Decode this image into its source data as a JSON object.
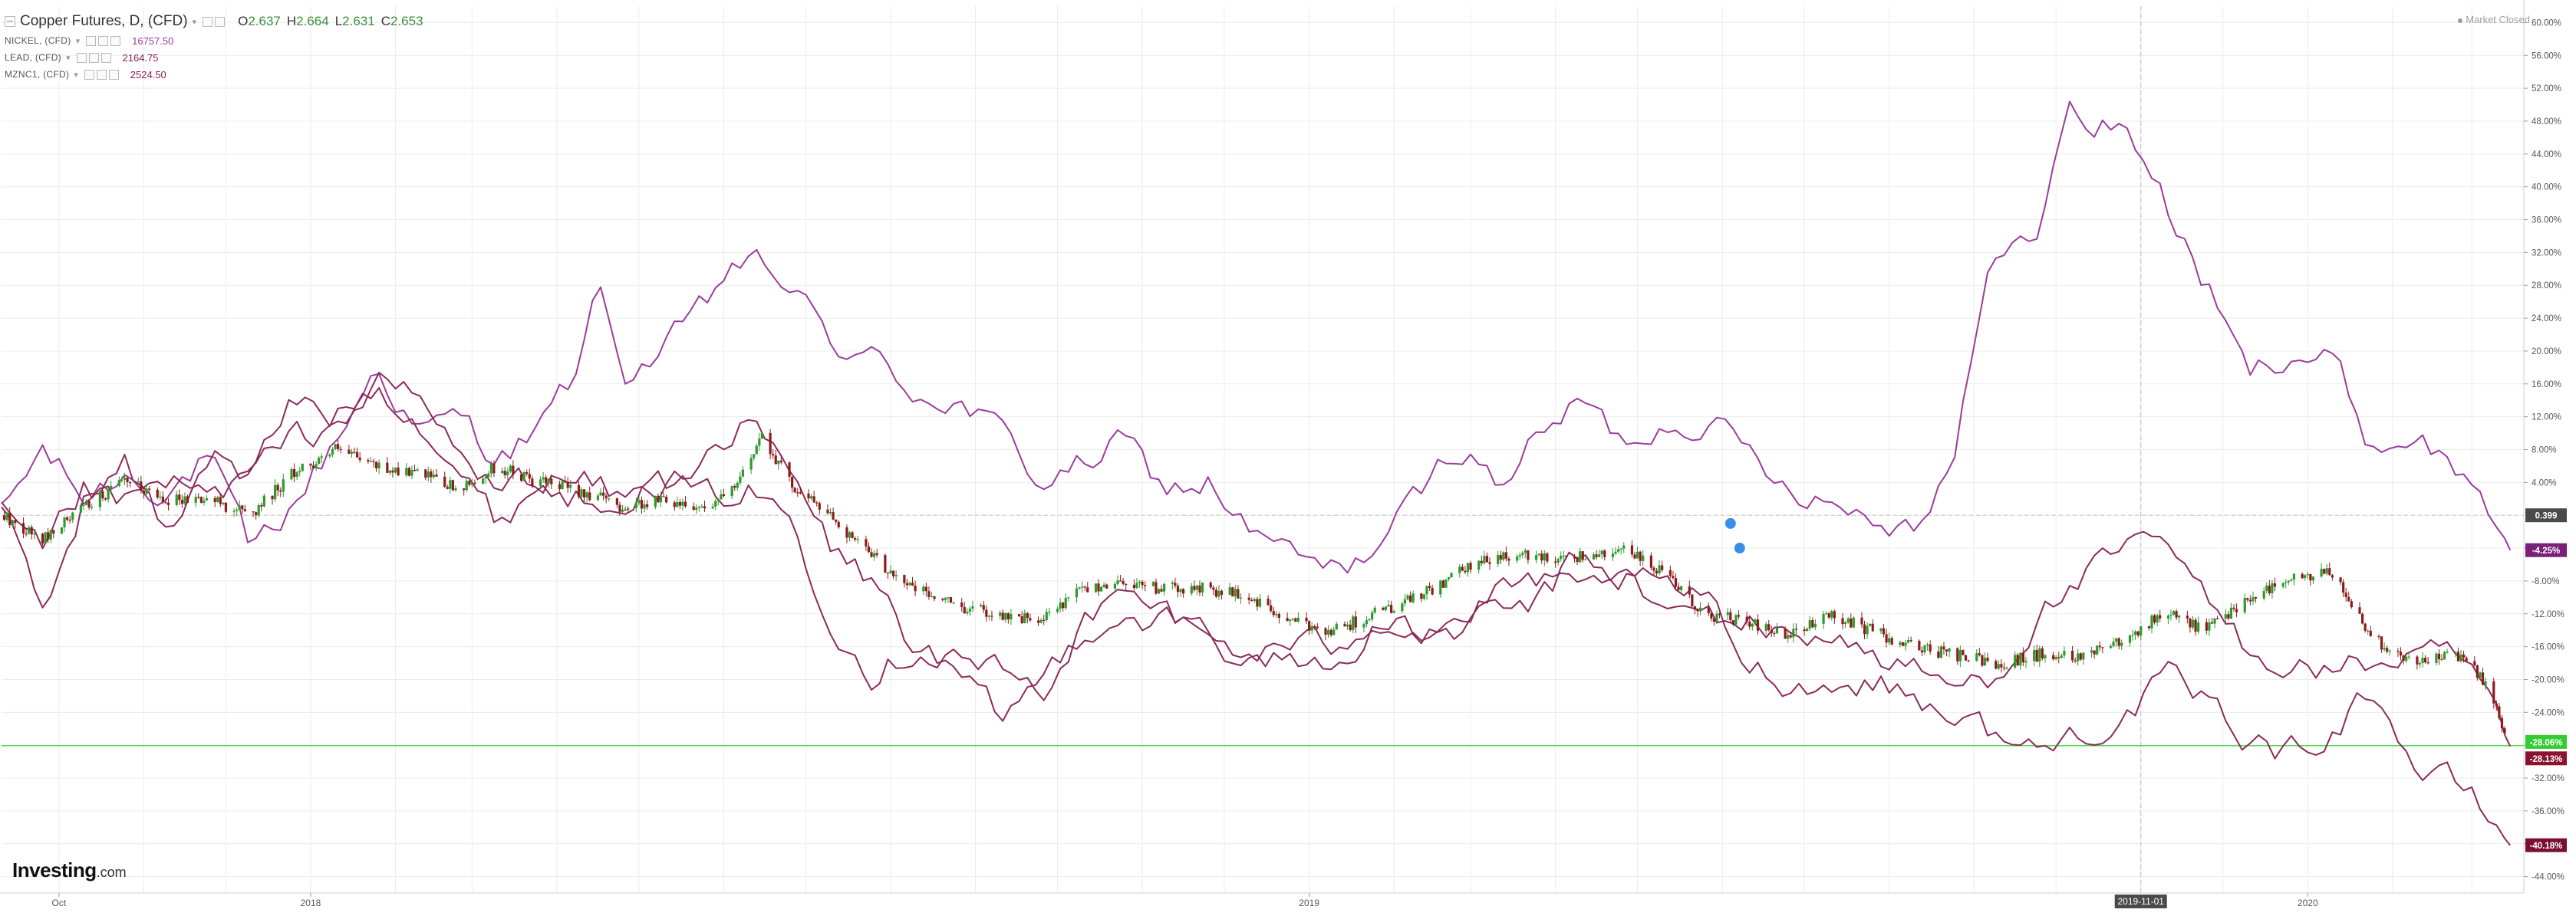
{
  "legend": {
    "main": {
      "title": "Copper Futures, D, (CFD)",
      "open_label": "O",
      "open": "2.637",
      "high_label": "H",
      "high": "2.664",
      "low_label": "L",
      "low": "2.631",
      "close_label": "C",
      "close": "2.653"
    },
    "compare": [
      {
        "name": "NICKEL, (CFD)",
        "value": "16757.50",
        "color": "#9c3b9c"
      },
      {
        "name": "LEAD, (CFD)",
        "value": "2164.75",
        "color": "#8b1e55"
      },
      {
        "name": "MZNC1, (CFD)",
        "value": "2524.50",
        "color": "#8b1e55"
      }
    ]
  },
  "status": {
    "market": "Market Closed"
  },
  "logo": {
    "brand": "Investing",
    "domain": ".com"
  },
  "colors": {
    "nickel": "#9c3b9c",
    "lead": "#8b2a5a",
    "zinc": "#8b2a5a",
    "up": "#2e9a2e",
    "down": "#8b1c1c",
    "grid": "#ececec",
    "hline": "#53d653"
  },
  "chart_data": {
    "type": "line",
    "x_tick_labels": [
      "Oct",
      "2018",
      "2019",
      "2019-11-01",
      "2020"
    ],
    "y_ticks": [
      "60.00%",
      "56.00%",
      "52.00%",
      "48.00%",
      "44.00%",
      "40.00%",
      "36.00%",
      "32.00%",
      "28.00%",
      "24.00%",
      "20.00%",
      "16.00%",
      "12.00%",
      "8.00%",
      "4.00%",
      "-4.00%",
      "-8.00%",
      "-12.00%",
      "-16.00%",
      "-20.00%",
      "-24.00%",
      "-28.00%",
      "-32.00%",
      "-36.00%",
      "-40.00%",
      "-44.00%"
    ],
    "ylim": [
      -46,
      62
    ],
    "y_unit": "%",
    "x_range": [
      "2017-09-10",
      "2020-03-20"
    ],
    "series": [
      {
        "name": "NICKEL, (CFD)",
        "style": "line",
        "last_label": "-4.25%",
        "points": [
          [
            "2017-09-10",
            0
          ],
          [
            "2017-09-25",
            8
          ],
          [
            "2017-10-10",
            2
          ],
          [
            "2017-10-25",
            5
          ],
          [
            "2017-11-10",
            3
          ],
          [
            "2017-11-25",
            7
          ],
          [
            "2017-12-10",
            -5
          ],
          [
            "2017-12-25",
            1
          ],
          [
            "2018-01-10",
            9
          ],
          [
            "2018-01-25",
            18
          ],
          [
            "2018-02-10",
            10
          ],
          [
            "2018-02-25",
            12
          ],
          [
            "2018-03-10",
            7
          ],
          [
            "2018-03-25",
            10
          ],
          [
            "2018-04-10",
            18
          ],
          [
            "2018-04-15",
            29
          ],
          [
            "2018-04-25",
            17
          ],
          [
            "2018-05-10",
            20
          ],
          [
            "2018-05-25",
            25
          ],
          [
            "2018-06-05",
            31
          ],
          [
            "2018-06-15",
            30
          ],
          [
            "2018-06-25",
            28
          ],
          [
            "2018-07-10",
            21
          ],
          [
            "2018-07-25",
            19
          ],
          [
            "2018-08-10",
            15
          ],
          [
            "2018-08-25",
            14
          ],
          [
            "2018-09-10",
            10
          ],
          [
            "2018-09-25",
            4
          ],
          [
            "2018-10-10",
            6
          ],
          [
            "2018-10-25",
            9
          ],
          [
            "2018-11-10",
            3
          ],
          [
            "2018-11-25",
            4
          ],
          [
            "2018-12-10",
            -2
          ],
          [
            "2018-12-25",
            -5
          ],
          [
            "2019-01-10",
            -7
          ],
          [
            "2019-01-25",
            -4
          ],
          [
            "2019-02-10",
            2
          ],
          [
            "2019-02-25",
            9
          ],
          [
            "2019-03-10",
            4
          ],
          [
            "2019-03-25",
            9
          ],
          [
            "2019-04-10",
            14
          ],
          [
            "2019-04-25",
            9
          ],
          [
            "2019-05-10",
            11
          ],
          [
            "2019-05-25",
            12
          ],
          [
            "2019-06-10",
            8
          ],
          [
            "2019-06-25",
            4
          ],
          [
            "2019-07-10",
            2
          ],
          [
            "2019-07-25",
            0
          ],
          [
            "2019-08-10",
            -1
          ],
          [
            "2019-08-25",
            8
          ],
          [
            "2019-09-05",
            27
          ],
          [
            "2019-09-15",
            35
          ],
          [
            "2019-09-25",
            33
          ],
          [
            "2019-10-05",
            50
          ],
          [
            "2019-10-15",
            47
          ],
          [
            "2019-10-25",
            48
          ],
          [
            "2019-11-05",
            42
          ],
          [
            "2019-11-15",
            34
          ],
          [
            "2019-11-25",
            28
          ],
          [
            "2019-12-10",
            17
          ],
          [
            "2019-12-25",
            20
          ],
          [
            "2020-01-10",
            19
          ],
          [
            "2020-01-25",
            8
          ],
          [
            "2020-02-10",
            10
          ],
          [
            "2020-02-25",
            5
          ],
          [
            "2020-03-05",
            3
          ],
          [
            "2020-03-15",
            -4.25
          ]
        ]
      },
      {
        "name": "LEAD, (CFD)",
        "style": "line",
        "last_label": "-28.13%",
        "points": [
          [
            "2017-09-10",
            0
          ],
          [
            "2017-09-25",
            -12
          ],
          [
            "2017-10-10",
            2
          ],
          [
            "2017-10-25",
            6
          ],
          [
            "2017-11-10",
            -2
          ],
          [
            "2017-11-25",
            8
          ],
          [
            "2017-12-10",
            4
          ],
          [
            "2017-12-25",
            14
          ],
          [
            "2018-01-10",
            12
          ],
          [
            "2018-01-25",
            16
          ],
          [
            "2018-02-10",
            12
          ],
          [
            "2018-02-25",
            5
          ],
          [
            "2018-03-10",
            -1
          ],
          [
            "2018-03-25",
            4
          ],
          [
            "2018-04-10",
            2
          ],
          [
            "2018-04-25",
            3
          ],
          [
            "2018-05-10",
            4
          ],
          [
            "2018-05-25",
            2
          ],
          [
            "2018-06-10",
            3
          ],
          [
            "2018-06-25",
            0
          ],
          [
            "2018-07-10",
            -12
          ],
          [
            "2018-07-25",
            -19
          ],
          [
            "2018-08-10",
            -16
          ],
          [
            "2018-08-25",
            -17
          ],
          [
            "2018-09-10",
            -19
          ],
          [
            "2018-09-25",
            -22
          ],
          [
            "2018-10-10",
            -13
          ],
          [
            "2018-10-25",
            -10
          ],
          [
            "2018-11-10",
            -12
          ],
          [
            "2018-11-25",
            -14
          ],
          [
            "2018-12-10",
            -18
          ],
          [
            "2018-12-25",
            -17
          ],
          [
            "2019-01-10",
            -19
          ],
          [
            "2019-01-25",
            -13
          ],
          [
            "2019-02-10",
            -15
          ],
          [
            "2019-02-25",
            -14
          ],
          [
            "2019-03-10",
            -12
          ],
          [
            "2019-03-25",
            -11
          ],
          [
            "2019-04-10",
            -5
          ],
          [
            "2019-04-25",
            -7
          ],
          [
            "2019-05-10",
            -12
          ],
          [
            "2019-05-25",
            -12
          ],
          [
            "2019-06-10",
            -13
          ],
          [
            "2019-06-25",
            -15
          ],
          [
            "2019-07-10",
            -14
          ],
          [
            "2019-07-25",
            -17
          ],
          [
            "2019-08-10",
            -19
          ],
          [
            "2019-08-25",
            -21
          ],
          [
            "2019-09-10",
            -19
          ],
          [
            "2019-09-25",
            -12
          ],
          [
            "2019-10-10",
            -8
          ],
          [
            "2019-10-25",
            -5
          ],
          [
            "2019-11-10",
            -3
          ],
          [
            "2019-11-25",
            -11
          ],
          [
            "2019-12-10",
            -16
          ],
          [
            "2019-12-25",
            -18
          ],
          [
            "2020-01-10",
            -19
          ],
          [
            "2020-01-25",
            -18
          ],
          [
            "2020-02-10",
            -17
          ],
          [
            "2020-02-25",
            -18
          ],
          [
            "2020-03-05",
            -21
          ],
          [
            "2020-03-15",
            -28.13
          ]
        ]
      },
      {
        "name": "MZNC1, (CFD)",
        "style": "line",
        "last_label": "-40.18%",
        "points": [
          [
            "2017-09-10",
            0
          ],
          [
            "2017-09-25",
            -5
          ],
          [
            "2017-10-10",
            3
          ],
          [
            "2017-10-25",
            1
          ],
          [
            "2017-11-10",
            4
          ],
          [
            "2017-11-25",
            2
          ],
          [
            "2017-12-10",
            5
          ],
          [
            "2017-12-25",
            9
          ],
          [
            "2018-01-10",
            11
          ],
          [
            "2018-01-25",
            16
          ],
          [
            "2018-02-10",
            14
          ],
          [
            "2018-02-25",
            7
          ],
          [
            "2018-03-10",
            3
          ],
          [
            "2018-03-25",
            5
          ],
          [
            "2018-04-10",
            4
          ],
          [
            "2018-04-25",
            2
          ],
          [
            "2018-05-10",
            3
          ],
          [
            "2018-05-25",
            8
          ],
          [
            "2018-06-10",
            11
          ],
          [
            "2018-06-25",
            5
          ],
          [
            "2018-07-10",
            -4
          ],
          [
            "2018-07-25",
            -8
          ],
          [
            "2018-08-10",
            -16
          ],
          [
            "2018-08-25",
            -20
          ],
          [
            "2018-09-10",
            -25
          ],
          [
            "2018-09-25",
            -20
          ],
          [
            "2018-10-10",
            -14
          ],
          [
            "2018-10-25",
            -12
          ],
          [
            "2018-11-10",
            -13
          ],
          [
            "2018-11-25",
            -15
          ],
          [
            "2018-12-10",
            -17
          ],
          [
            "2018-12-25",
            -16
          ],
          [
            "2019-01-10",
            -16
          ],
          [
            "2019-01-25",
            -12
          ],
          [
            "2019-02-10",
            -14
          ],
          [
            "2019-02-25",
            -13
          ],
          [
            "2019-03-10",
            -10
          ],
          [
            "2019-03-25",
            -8
          ],
          [
            "2019-04-10",
            -10
          ],
          [
            "2019-04-25",
            -8
          ],
          [
            "2019-05-10",
            -9
          ],
          [
            "2019-05-25",
            -10
          ],
          [
            "2019-06-10",
            -18
          ],
          [
            "2019-06-25",
            -20
          ],
          [
            "2019-07-10",
            -21
          ],
          [
            "2019-07-25",
            -20
          ],
          [
            "2019-08-10",
            -22
          ],
          [
            "2019-08-25",
            -24
          ],
          [
            "2019-09-10",
            -27
          ],
          [
            "2019-09-25",
            -29
          ],
          [
            "2019-10-10",
            -26
          ],
          [
            "2019-10-25",
            -25
          ],
          [
            "2019-11-10",
            -20
          ],
          [
            "2019-11-25",
            -23
          ],
          [
            "2019-12-10",
            -27
          ],
          [
            "2019-12-25",
            -29
          ],
          [
            "2020-01-10",
            -26
          ],
          [
            "2020-01-25",
            -21
          ],
          [
            "2020-02-10",
            -31
          ],
          [
            "2020-02-25",
            -33
          ],
          [
            "2020-03-05",
            -36
          ],
          [
            "2020-03-15",
            -40.18
          ]
        ]
      },
      {
        "name": "Copper Futures, D, (CFD)",
        "style": "candles",
        "last_label": "-28.06%",
        "points": [
          [
            "2017-09-10",
            0
          ],
          [
            "2017-09-25",
            -3
          ],
          [
            "2017-10-10",
            1
          ],
          [
            "2017-10-25",
            4
          ],
          [
            "2017-11-10",
            2
          ],
          [
            "2017-11-25",
            2
          ],
          [
            "2017-12-10",
            0
          ],
          [
            "2017-12-25",
            5
          ],
          [
            "2018-01-10",
            8
          ],
          [
            "2018-01-25",
            6
          ],
          [
            "2018-02-10",
            5
          ],
          [
            "2018-02-25",
            3
          ],
          [
            "2018-03-10",
            6
          ],
          [
            "2018-03-25",
            4
          ],
          [
            "2018-04-10",
            3
          ],
          [
            "2018-04-25",
            1
          ],
          [
            "2018-05-10",
            2
          ],
          [
            "2018-05-25",
            1
          ],
          [
            "2018-06-05",
            3
          ],
          [
            "2018-06-15",
            10
          ],
          [
            "2018-06-25",
            4
          ],
          [
            "2018-07-10",
            0
          ],
          [
            "2018-07-25",
            -5
          ],
          [
            "2018-08-10",
            -9
          ],
          [
            "2018-08-25",
            -11
          ],
          [
            "2018-09-10",
            -12
          ],
          [
            "2018-09-25",
            -13
          ],
          [
            "2018-10-10",
            -9
          ],
          [
            "2018-10-25",
            -8
          ],
          [
            "2018-11-10",
            -9
          ],
          [
            "2018-11-25",
            -9
          ],
          [
            "2018-12-10",
            -10
          ],
          [
            "2018-12-25",
            -13
          ],
          [
            "2019-01-10",
            -14
          ],
          [
            "2019-01-25",
            -12
          ],
          [
            "2019-02-10",
            -10
          ],
          [
            "2019-02-25",
            -7
          ],
          [
            "2019-03-10",
            -5
          ],
          [
            "2019-03-25",
            -5
          ],
          [
            "2019-04-10",
            -5
          ],
          [
            "2019-04-25",
            -4
          ],
          [
            "2019-05-10",
            -7
          ],
          [
            "2019-05-25",
            -12
          ],
          [
            "2019-06-10",
            -13
          ],
          [
            "2019-06-25",
            -15
          ],
          [
            "2019-07-10",
            -12
          ],
          [
            "2019-07-25",
            -14
          ],
          [
            "2019-08-10",
            -16
          ],
          [
            "2019-08-25",
            -17
          ],
          [
            "2019-09-10",
            -18
          ],
          [
            "2019-09-25",
            -17
          ],
          [
            "2019-10-10",
            -17
          ],
          [
            "2019-10-25",
            -15
          ],
          [
            "2019-11-10",
            -12
          ],
          [
            "2019-11-25",
            -14
          ],
          [
            "2019-12-10",
            -10
          ],
          [
            "2019-12-25",
            -8
          ],
          [
            "2020-01-10",
            -7
          ],
          [
            "2020-01-25",
            -15
          ],
          [
            "2020-02-10",
            -18
          ],
          [
            "2020-02-25",
            -17
          ],
          [
            "2020-03-05",
            -20
          ],
          [
            "2020-03-15",
            -28.06
          ]
        ]
      }
    ],
    "reference_lines": [
      {
        "value": 0,
        "label": "0.399",
        "style": "dashed"
      },
      {
        "value": -28.06,
        "style": "solid",
        "color": "#53d653"
      }
    ],
    "grid": true
  }
}
